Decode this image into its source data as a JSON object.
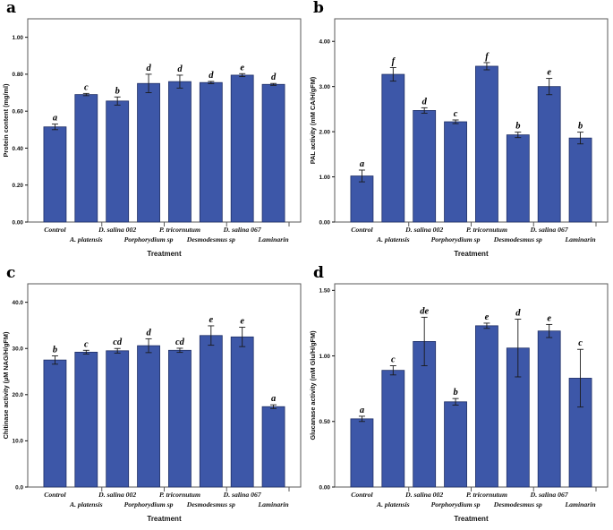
{
  "figure": {
    "background": "#ffffff",
    "bar_fill": "#3d57a8",
    "bar_border": "#1f2f66",
    "error_color": "#1a1a1a",
    "frame_color": "#5a5a5a",
    "text_color": "#111111",
    "xlabel": "Treatment"
  },
  "chart_data": [
    {
      "panel": "a",
      "type": "bar",
      "title": "",
      "ylabel": "Protein content (mg/ml)",
      "xlabel": "Treatment",
      "categories": [
        "Control",
        "A. platensis",
        "D. salina 002",
        "Porphorydium sp",
        "P. tricornutum",
        "Desmodesmus sp",
        "D. salina 067",
        "Laminarin"
      ],
      "values": [
        0.515,
        0.69,
        0.655,
        0.75,
        0.76,
        0.755,
        0.795,
        0.745
      ],
      "errors": [
        0.015,
        0.006,
        0.022,
        0.05,
        0.035,
        0.006,
        0.008,
        0.005
      ],
      "sig_letters": [
        "a",
        "c",
        "b",
        "d",
        "d",
        "d",
        "e",
        "d"
      ],
      "ylim": [
        0,
        1.1
      ],
      "yticks": [
        0,
        0.2,
        0.4,
        0.6,
        0.8,
        1.0
      ],
      "ytick_labels": [
        "0.00",
        "0.20",
        "0.40",
        "0.60",
        "0.80",
        "1.00"
      ],
      "grid": "off",
      "legend": "none"
    },
    {
      "panel": "b",
      "type": "bar",
      "title": "",
      "ylabel": "PAL activity (mM CA/H/gFM)",
      "xlabel": "Treatment",
      "categories": [
        "Control",
        "A. platensis",
        "D. salina 002",
        "Porphorydium sp",
        "P. tricornutum",
        "Desmodesmus sp",
        "D. salina 067",
        "Laminarin"
      ],
      "values": [
        1.02,
        3.27,
        2.47,
        2.22,
        3.45,
        1.93,
        3.0,
        1.86
      ],
      "errors": [
        0.13,
        0.15,
        0.06,
        0.04,
        0.08,
        0.06,
        0.18,
        0.13
      ],
      "sig_letters": [
        "a",
        "f",
        "d",
        "c",
        "f",
        "b",
        "e",
        "b"
      ],
      "ylim": [
        0,
        4.5
      ],
      "yticks": [
        0,
        1,
        2,
        3,
        4
      ],
      "ytick_labels": [
        "0.00",
        "1.00",
        "2.00",
        "3.00",
        "4.00"
      ],
      "grid": "off",
      "legend": "none"
    },
    {
      "panel": "c",
      "type": "bar",
      "title": "",
      "ylabel": "Chitinase activity (µM NAG/H/gFM)",
      "xlabel": "Treatment",
      "categories": [
        "Control",
        "A. platensis",
        "D. salina 002",
        "Porphorydium sp",
        "P. tricornutum",
        "Desmodesmus sp",
        "D. salina 067",
        "Laminarin"
      ],
      "values": [
        27.5,
        29.2,
        29.5,
        30.6,
        29.6,
        32.8,
        32.5,
        17.4
      ],
      "errors": [
        0.9,
        0.4,
        0.5,
        1.5,
        0.45,
        2.1,
        2.1,
        0.4
      ],
      "sig_letters": [
        "b",
        "c",
        "cd",
        "d",
        "cd",
        "e",
        "e",
        "a"
      ],
      "ylim": [
        0,
        44
      ],
      "yticks": [
        0,
        10,
        20,
        30,
        40
      ],
      "ytick_labels": [
        "0.0",
        "10.0",
        "20.0",
        "30.0",
        "40.0"
      ],
      "grid": "off",
      "legend": "none"
    },
    {
      "panel": "d",
      "type": "bar",
      "title": "",
      "ylabel": "Glucanase activity (mM Glu/H/gFM)",
      "xlabel": "Treatment",
      "categories": [
        "Control",
        "A. platensis",
        "D. salina 002",
        "Porphorydium sp",
        "P. tricornutum",
        "Desmodesmus sp",
        "D. salina 067",
        "Laminarin"
      ],
      "values": [
        0.52,
        0.89,
        1.11,
        0.65,
        1.23,
        1.06,
        1.19,
        0.83
      ],
      "errors": [
        0.02,
        0.035,
        0.185,
        0.025,
        0.02,
        0.22,
        0.05,
        0.22
      ],
      "sig_letters": [
        "a",
        "c",
        "de",
        "b",
        "e",
        "d",
        "e",
        "c"
      ],
      "ylim": [
        0,
        1.55
      ],
      "yticks": [
        0,
        0.5,
        1.0,
        1.5
      ],
      "ytick_labels": [
        "0.00",
        "0.50",
        "1.00",
        "1.50"
      ],
      "grid": "off",
      "legend": "none"
    }
  ]
}
